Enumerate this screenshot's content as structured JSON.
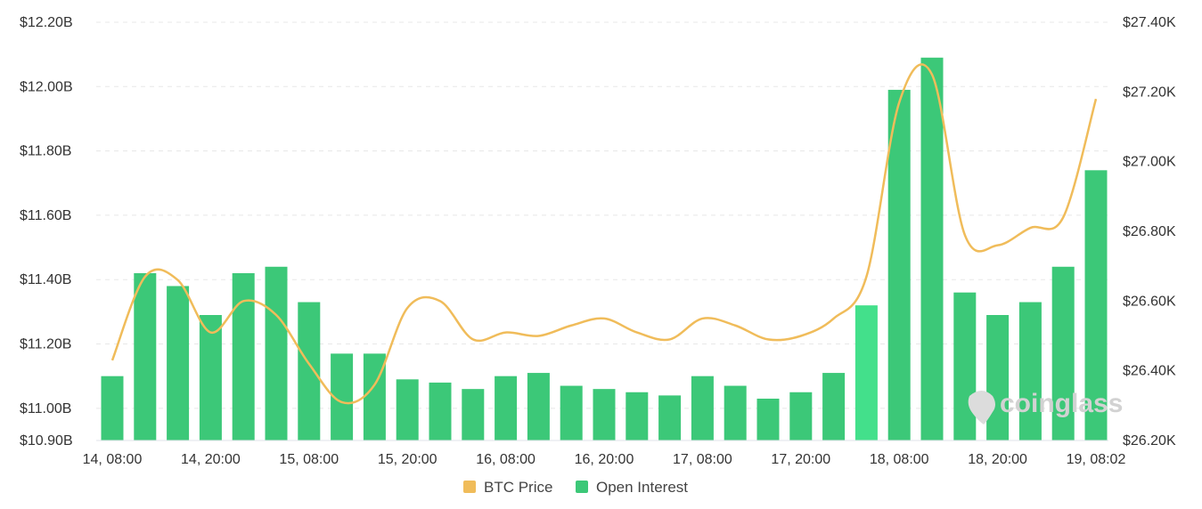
{
  "chart_data": {
    "type": "bar",
    "x_tick_labels": [
      "14, 08:00",
      "14, 20:00",
      "15, 08:00",
      "15, 20:00",
      "16, 08:00",
      "16, 20:00",
      "17, 08:00",
      "17, 20:00",
      "18, 08:00",
      "18, 20:00",
      "19, 08:02"
    ],
    "y_left_ticks": [
      "$12.20B",
      "$12.00B",
      "$11.80B",
      "$11.60B",
      "$11.40B",
      "$11.20B",
      "$11.00B",
      "$10.90B"
    ],
    "y_right_ticks": [
      "$27.40K",
      "$27.20K",
      "$27.00K",
      "$26.80K",
      "$26.60K",
      "$26.40K",
      "$26.20K"
    ],
    "ylim_left": [
      10.9,
      12.2
    ],
    "ylim_right": [
      26.2,
      27.4
    ],
    "series": [
      {
        "name": "Open Interest",
        "kind": "bar",
        "axis": "left",
        "unit": "$B",
        "color": "#3cc878",
        "values": [
          11.1,
          11.42,
          11.38,
          11.29,
          11.42,
          11.44,
          11.33,
          11.17,
          11.17,
          11.09,
          11.08,
          11.06,
          11.1,
          11.11,
          11.07,
          11.06,
          11.05,
          11.04,
          11.1,
          11.07,
          11.03,
          11.05,
          11.11,
          11.32,
          11.99,
          12.09,
          11.36,
          11.29,
          11.33,
          11.44,
          11.74
        ]
      },
      {
        "name": "BTC Price",
        "kind": "line",
        "axis": "right",
        "unit": "$K",
        "color": "#f0bc5a",
        "values": [
          26.43,
          26.67,
          26.66,
          26.51,
          26.6,
          26.56,
          26.42,
          26.31,
          26.36,
          26.58,
          26.6,
          26.49,
          26.51,
          26.5,
          26.53,
          26.55,
          26.51,
          26.49,
          26.55,
          26.53,
          26.49,
          26.5,
          26.55,
          26.67,
          27.17,
          27.25,
          26.79,
          26.76,
          26.81,
          26.84,
          27.18
        ]
      }
    ],
    "highlight_index": 23,
    "highlight_color": "#43e08b",
    "grid": true,
    "legend_position": "bottom-center",
    "legend": [
      {
        "label": "BTC Price",
        "color": "#f0bc5a"
      },
      {
        "label": "Open Interest",
        "color": "#3cc878"
      }
    ],
    "watermark": "coinglass"
  }
}
